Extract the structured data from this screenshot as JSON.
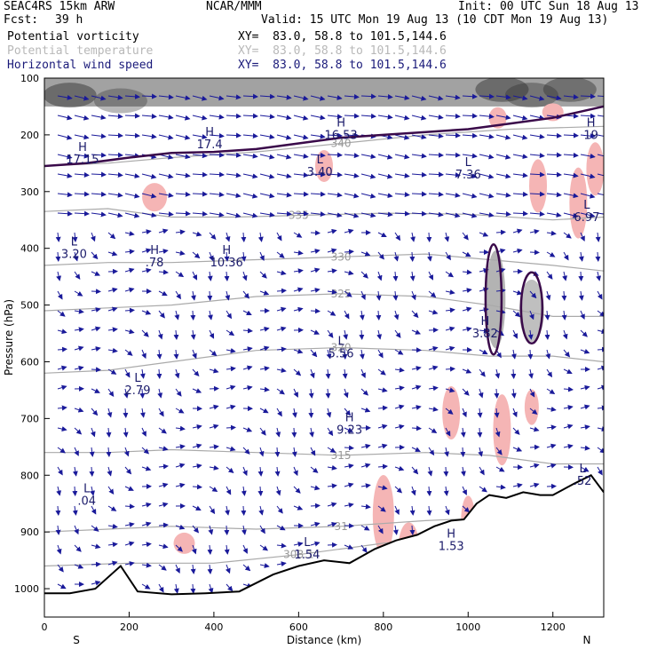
{
  "header": {
    "model": "SEAC4RS 15km ARW",
    "org": "NCAR/MMM",
    "init": "Init: 00 UTC Sun 18 Aug 13",
    "fcst_label": "Fcst:",
    "fcst_value": "39 h",
    "valid": "Valid: 15 UTC Mon 19 Aug 13 (10 CDT Mon 19 Aug 13)",
    "fields": [
      {
        "name": "Potential vorticity",
        "xy": "XY=  83.0, 58.8 to 101.5,144.6"
      },
      {
        "name": "Potential temperature",
        "xy": "XY=  83.0, 58.8 to 101.5,144.6"
      },
      {
        "name": "Horizontal wind speed",
        "xy": "XY=  83.0, 58.8 to 101.5,144.6"
      }
    ]
  },
  "colors": {
    "pv_contour": "#3a0a4a",
    "theta": "#aaaaaa",
    "wind_arrows": "#1a1a9a",
    "terrain": "#000000",
    "pink_fill": "#f5b5b5",
    "gray_fill": "#808080"
  },
  "chart_data": {
    "type": "cross-section",
    "xlabel": "Distance (km)",
    "ylabel": "Pressure (hPa)",
    "xlim": [
      0,
      1320
    ],
    "ylim": [
      1050,
      100
    ],
    "x_ticks": [
      "0",
      "200",
      "400",
      "600",
      "800",
      "1000",
      "1200"
    ],
    "y_ticks": [
      "100",
      "200",
      "300",
      "400",
      "500",
      "600",
      "700",
      "800",
      "900",
      "1000"
    ],
    "x_end_labels": {
      "left": "S",
      "right": "N"
    },
    "terrain": [
      [
        0,
        1008
      ],
      [
        60,
        1008
      ],
      [
        120,
        1000
      ],
      [
        180,
        960
      ],
      [
        220,
        1005
      ],
      [
        300,
        1010
      ],
      [
        380,
        1008
      ],
      [
        460,
        1005
      ],
      [
        540,
        975
      ],
      [
        600,
        960
      ],
      [
        660,
        950
      ],
      [
        720,
        955
      ],
      [
        780,
        930
      ],
      [
        830,
        915
      ],
      [
        880,
        905
      ],
      [
        920,
        890
      ],
      [
        960,
        880
      ],
      [
        990,
        878
      ],
      [
        1020,
        850
      ],
      [
        1050,
        835
      ],
      [
        1090,
        840
      ],
      [
        1130,
        830
      ],
      [
        1170,
        835
      ],
      [
        1200,
        835
      ],
      [
        1250,
        815
      ],
      [
        1290,
        800
      ],
      [
        1320,
        830
      ]
    ],
    "theta_contours": [
      {
        "label": "340",
        "points": [
          [
            0,
            255
          ],
          [
            150,
            250
          ],
          [
            300,
            240
          ],
          [
            500,
            230
          ],
          [
            700,
            215
          ],
          [
            900,
            200
          ],
          [
            1100,
            190
          ],
          [
            1320,
            185
          ]
        ]
      },
      {
        "label": "335",
        "points": [
          [
            0,
            335
          ],
          [
            150,
            330
          ],
          [
            300,
            345
          ],
          [
            450,
            345
          ],
          [
            600,
            342
          ],
          [
            800,
            338
          ],
          [
            1000,
            340
          ],
          [
            1200,
            350
          ],
          [
            1320,
            345
          ]
        ]
      },
      {
        "label": "330",
        "points": [
          [
            0,
            430
          ],
          [
            150,
            425
          ],
          [
            300,
            425
          ],
          [
            500,
            420
          ],
          [
            700,
            415
          ],
          [
            900,
            410
          ],
          [
            1050,
            420
          ],
          [
            1200,
            430
          ],
          [
            1320,
            440
          ]
        ]
      },
      {
        "label": "325",
        "points": [
          [
            0,
            510
          ],
          [
            150,
            505
          ],
          [
            300,
            500
          ],
          [
            500,
            485
          ],
          [
            700,
            480
          ],
          [
            900,
            485
          ],
          [
            1050,
            500
          ],
          [
            1200,
            520
          ],
          [
            1320,
            520
          ]
        ]
      },
      {
        "label": "320",
        "points": [
          [
            0,
            620
          ],
          [
            150,
            615
          ],
          [
            300,
            600
          ],
          [
            500,
            580
          ],
          [
            700,
            575
          ],
          [
            900,
            580
          ],
          [
            1050,
            590
          ],
          [
            1200,
            590
          ],
          [
            1320,
            600
          ]
        ]
      },
      {
        "label": "315",
        "points": [
          [
            0,
            760
          ],
          [
            150,
            760
          ],
          [
            300,
            755
          ],
          [
            500,
            760
          ],
          [
            700,
            765
          ],
          [
            900,
            760
          ],
          [
            1050,
            765
          ],
          [
            1200,
            780
          ],
          [
            1320,
            780
          ]
        ]
      },
      {
        "label": "31",
        "points": [
          [
            0,
            900
          ],
          [
            150,
            895
          ],
          [
            300,
            890
          ],
          [
            500,
            895
          ],
          [
            700,
            890
          ],
          [
            900,
            880
          ],
          [
            1050,
            875
          ],
          [
            1200,
            880
          ]
        ]
      },
      {
        "label": "308.1",
        "points": [
          [
            0,
            960
          ],
          [
            200,
            955
          ],
          [
            400,
            955
          ],
          [
            600,
            940
          ],
          [
            800,
            920
          ],
          [
            900,
            915
          ]
        ]
      }
    ],
    "pv_contour_1p5": [
      [
        0,
        255
      ],
      [
        100,
        250
      ],
      [
        200,
        240
      ],
      [
        300,
        232
      ],
      [
        400,
        230
      ],
      [
        500,
        225
      ],
      [
        600,
        215
      ],
      [
        700,
        205
      ],
      [
        800,
        200
      ],
      [
        900,
        195
      ],
      [
        1000,
        190
      ],
      [
        1100,
        180
      ],
      [
        1200,
        170
      ],
      [
        1260,
        160
      ],
      [
        1320,
        150
      ]
    ],
    "markers": [
      {
        "kind": "H",
        "x": 700,
        "y": 185,
        "value": "16.53"
      },
      {
        "kind": "H",
        "x": 390,
        "y": 202,
        "value": "17.4"
      },
      {
        "kind": "H",
        "x": 90,
        "y": 228,
        "value": "17.15"
      },
      {
        "kind": "L",
        "x": 650,
        "y": 250,
        "value": "3.40"
      },
      {
        "kind": "L",
        "x": 1000,
        "y": 255,
        "value": "7.36"
      },
      {
        "kind": "L",
        "x": 1280,
        "y": 330,
        "value": "6.97"
      },
      {
        "kind": "H",
        "x": 1290,
        "y": 185,
        "value": "19"
      },
      {
        "kind": "L",
        "x": 70,
        "y": 395,
        "value": "3.20"
      },
      {
        "kind": "H",
        "x": 260,
        "y": 410,
        "value": ".78"
      },
      {
        "kind": "H",
        "x": 430,
        "y": 410,
        "value": "10.36"
      },
      {
        "kind": "H",
        "x": 1040,
        "y": 535,
        "value": "3.82"
      },
      {
        "kind": "L",
        "x": 700,
        "y": 570,
        "value": "5.56"
      },
      {
        "kind": "L",
        "x": 220,
        "y": 635,
        "value": "2.79"
      },
      {
        "kind": "H",
        "x": 720,
        "y": 705,
        "value": "9.23"
      },
      {
        "kind": "L",
        "x": 100,
        "y": 830,
        "value": ".04"
      },
      {
        "kind": "L",
        "x": 620,
        "y": 925,
        "value": "1.54"
      },
      {
        "kind": "H",
        "x": 960,
        "y": 910,
        "value": "1.53"
      },
      {
        "kind": "L",
        "x": 1270,
        "y": 795,
        "value": ".52"
      }
    ]
  }
}
